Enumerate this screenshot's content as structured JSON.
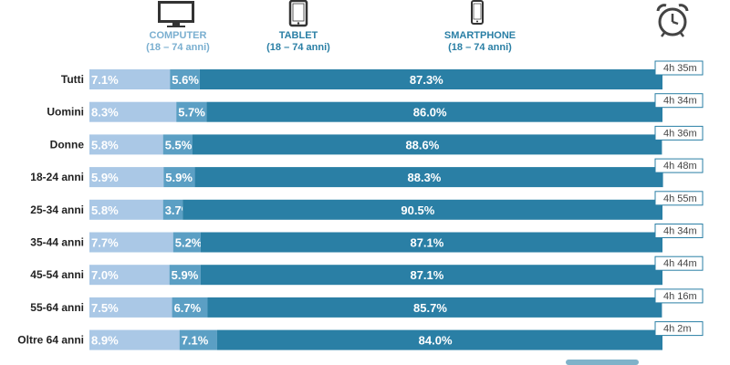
{
  "headers": {
    "computer": {
      "name": "COMPUTER",
      "range": "(18 – 74 anni)",
      "icon": "monitor-icon",
      "color": "#7aafd0"
    },
    "tablet": {
      "name": "TABLET",
      "range": "(18 – 74 anni)",
      "icon": "tablet-icon",
      "color": "#2a7fa5"
    },
    "smartphone": {
      "name": "SMARTPHONE",
      "range": "(18 – 74 anni)",
      "icon": "smartphone-icon",
      "color": "#2a7fa5"
    },
    "time_icon": "alarm-clock-icon"
  },
  "colors": {
    "computer": "#aac8e6",
    "tablet": "#5b9fc4",
    "smartphone": "#2a7fa5",
    "time_badge_border": "#2a7fa5"
  },
  "chart_data": {
    "type": "bar",
    "orientation": "horizontal",
    "stacked": true,
    "categories": [
      "Tutti",
      "Uomini",
      "Donne",
      "18-24 anni",
      "25-34 anni",
      "35-44 anni",
      "45-54 anni",
      "55-64 anni",
      "Oltre 64 anni"
    ],
    "series": [
      {
        "name": "COMPUTER",
        "values": [
          7.1,
          8.3,
          5.8,
          5.9,
          5.8,
          7.7,
          7.0,
          7.5,
          8.9
        ],
        "labels": [
          "7.1%",
          "8.3%",
          "5.8%",
          "5.9%",
          "5.8%",
          "7.7%",
          "7.0%",
          "7.5%",
          "8.9%"
        ]
      },
      {
        "name": "TABLET",
        "values": [
          5.6,
          5.7,
          5.5,
          5.9,
          3.7,
          5.2,
          5.9,
          6.7,
          7.1
        ],
        "labels": [
          "5.6%",
          "5.7%",
          "5.5%",
          "5.9%",
          "3.7%",
          "5.2%",
          "5.9%",
          "6.7%",
          "7.1%"
        ]
      },
      {
        "name": "SMARTPHONE",
        "values": [
          87.3,
          86.0,
          88.6,
          88.3,
          90.5,
          87.1,
          87.1,
          85.7,
          84.0
        ],
        "labels": [
          "87.3%",
          "86.0%",
          "88.6%",
          "88.3%",
          "90.5%",
          "87.1%",
          "87.1%",
          "85.7%",
          "84.0%"
        ]
      }
    ],
    "time_spent": [
      "4h 35m",
      "4h 34m",
      "4h 36m",
      "4h 48m",
      "4h 55m",
      "4h 34m",
      "4h 44m",
      "4h 16m",
      "4h 2m"
    ],
    "xlim": [
      0,
      100
    ]
  }
}
